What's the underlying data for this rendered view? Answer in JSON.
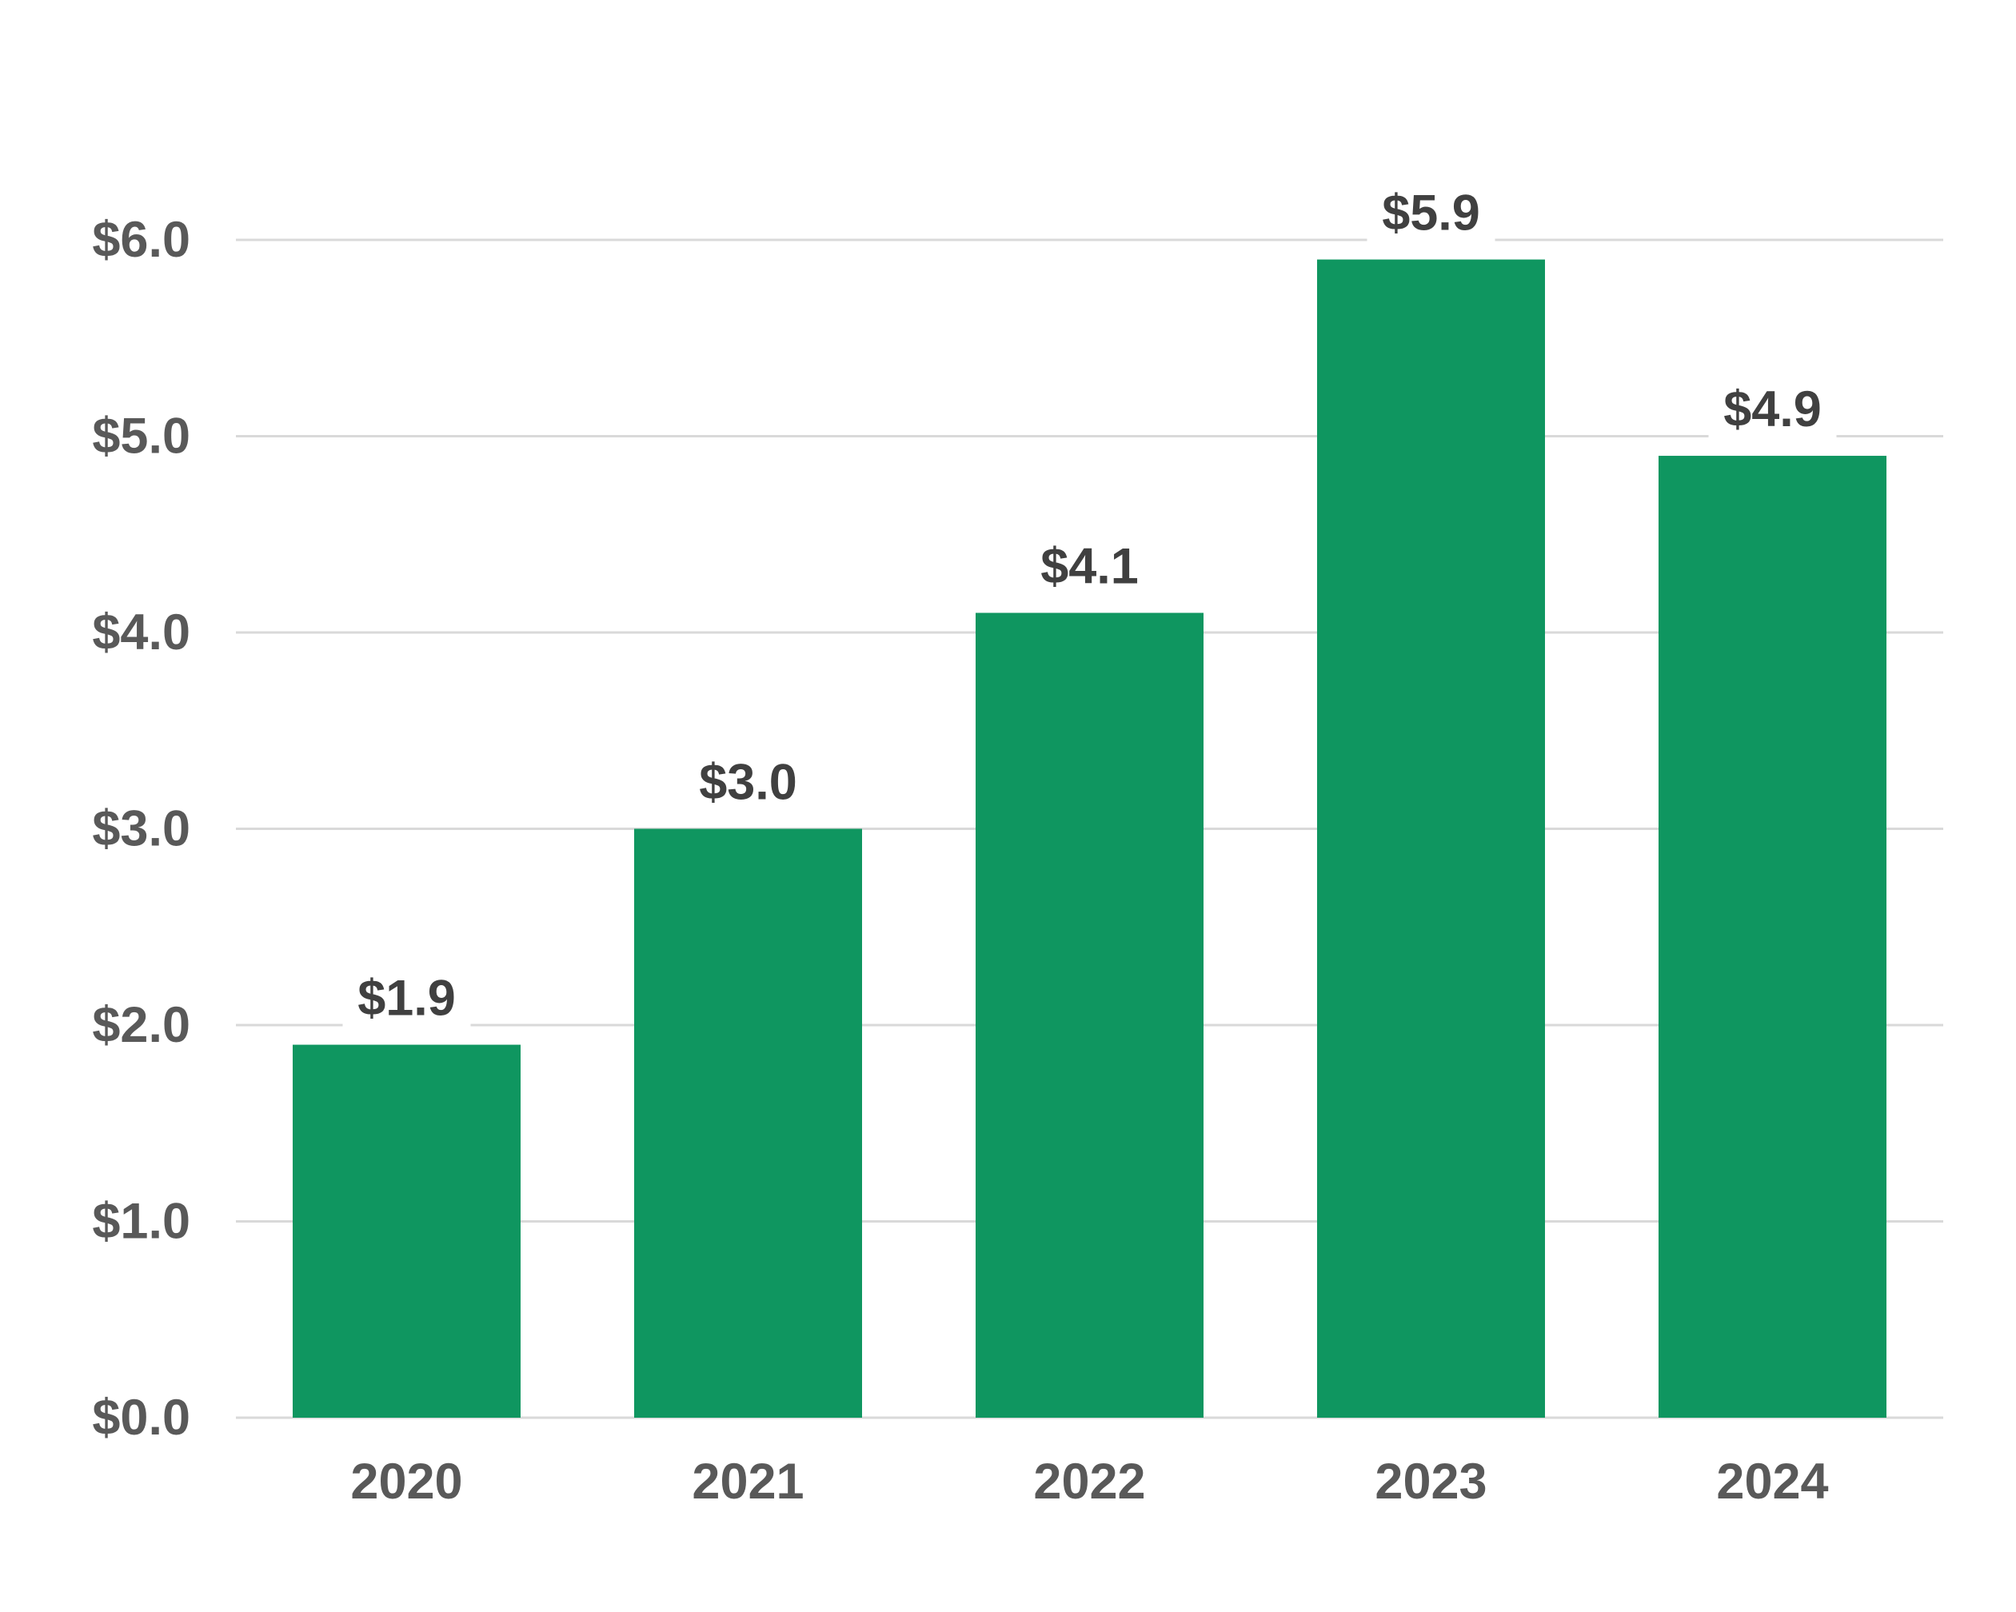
{
  "chart_data": {
    "type": "bar",
    "categories": [
      "2020",
      "2021",
      "2022",
      "2023",
      "2024"
    ],
    "values": [
      1.9,
      3.0,
      4.1,
      5.9,
      4.9
    ],
    "data_labels": [
      "$1.9",
      "$3.0",
      "$4.1",
      "$5.9",
      "$4.9"
    ],
    "ylim": [
      0,
      6
    ],
    "y_ticks": [
      0,
      1,
      2,
      3,
      4,
      5,
      6
    ],
    "y_tick_labels": [
      "$0.0",
      "$1.0",
      "$2.0",
      "$3.0",
      "$4.0",
      "$5.0",
      "$6.0"
    ],
    "grid": true,
    "legend": "none",
    "bar_color": "#0f9660",
    "grid_color": "#d9d9d9",
    "tick_label_color": "#595959",
    "data_label_color": "#404040"
  }
}
